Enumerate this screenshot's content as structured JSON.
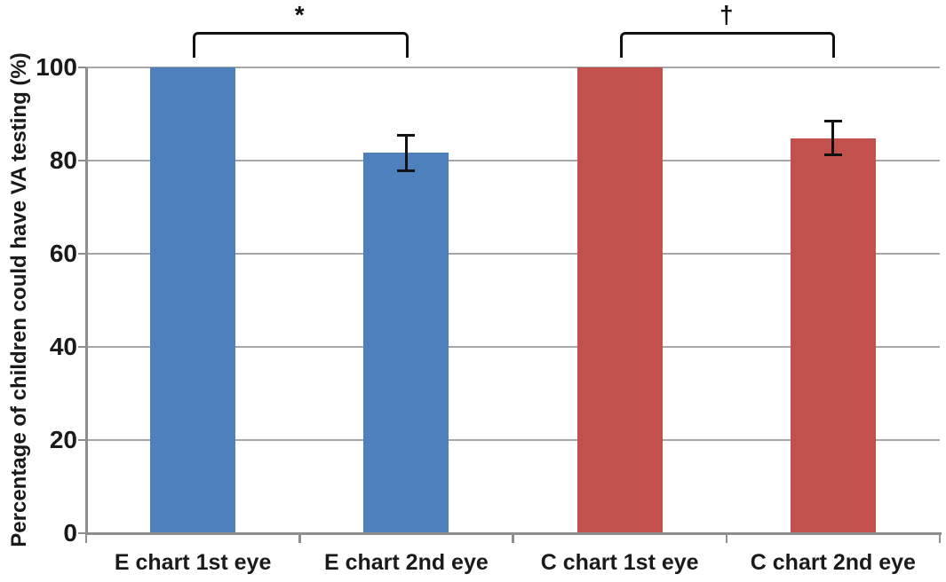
{
  "chart_data": {
    "type": "bar",
    "title": "",
    "xlabel": "",
    "ylabel": "Percentage of children could have VA testing (%)",
    "categories": [
      "E chart 1st eye",
      "E chart 2nd eye",
      "C chart 1st eye",
      "C chart 2nd eye"
    ],
    "values": [
      100,
      81.7,
      100,
      84.8
    ],
    "error_bars": [
      null,
      {
        "low": 77.8,
        "high": 85.5
      },
      null,
      {
        "low": 81.2,
        "high": 88.5
      }
    ],
    "bar_colors": [
      "#4d80bd",
      "#4d80bd",
      "#c2504d",
      "#c2504d"
    ],
    "ylim": [
      0,
      100
    ],
    "yticks": [
      0,
      20,
      40,
      60,
      80,
      100
    ],
    "grid": true,
    "legend": "none",
    "annotations": [
      {
        "symbol": "*",
        "from": 0,
        "to": 1
      },
      {
        "symbol": "†",
        "from": 2,
        "to": 3
      }
    ],
    "colors": {
      "gridline": "#a6a6a6",
      "axis": "#8e8e8e",
      "text": "#1a1a1a",
      "error_bar": "#111111",
      "background": "#ffffff"
    }
  }
}
